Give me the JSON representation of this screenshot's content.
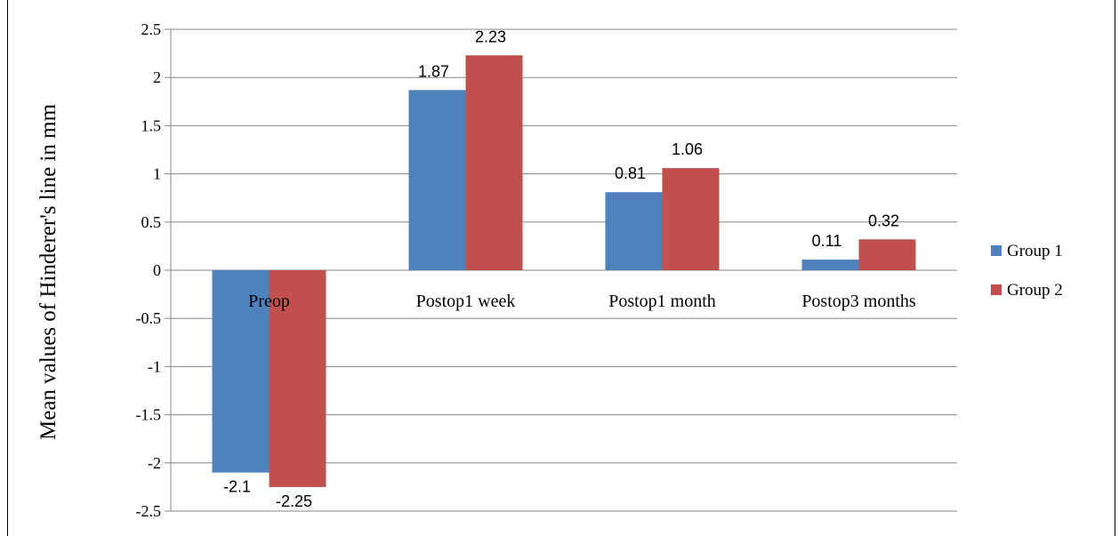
{
  "chart_data": {
    "type": "bar",
    "ylabel": "Mean values of Hinderer's  line in mm",
    "categories": [
      "Preop",
      "Postop1 week",
      "Postop1 month",
      "Postop3 months"
    ],
    "series": [
      {
        "name": "Group 1",
        "color": "#4F81BD",
        "values": [
          -2.1,
          1.87,
          0.81,
          0.11
        ],
        "labels": [
          "-2.1",
          "1.87",
          "0.81",
          "0.11"
        ]
      },
      {
        "name": "Group 2",
        "color": "#C0504D",
        "values": [
          -2.25,
          2.23,
          1.06,
          0.32
        ],
        "labels": [
          "-2.25",
          "2.23",
          "1.06",
          "0.32"
        ]
      }
    ],
    "ylim": [
      -2.5,
      2.5
    ],
    "yticks": [
      "2.5",
      "2",
      "1.5",
      "1",
      "0.5",
      "0",
      "-0.5",
      "-1",
      "-1.5",
      "-2",
      "-2.5"
    ],
    "grid": true,
    "legend_position": "right"
  }
}
